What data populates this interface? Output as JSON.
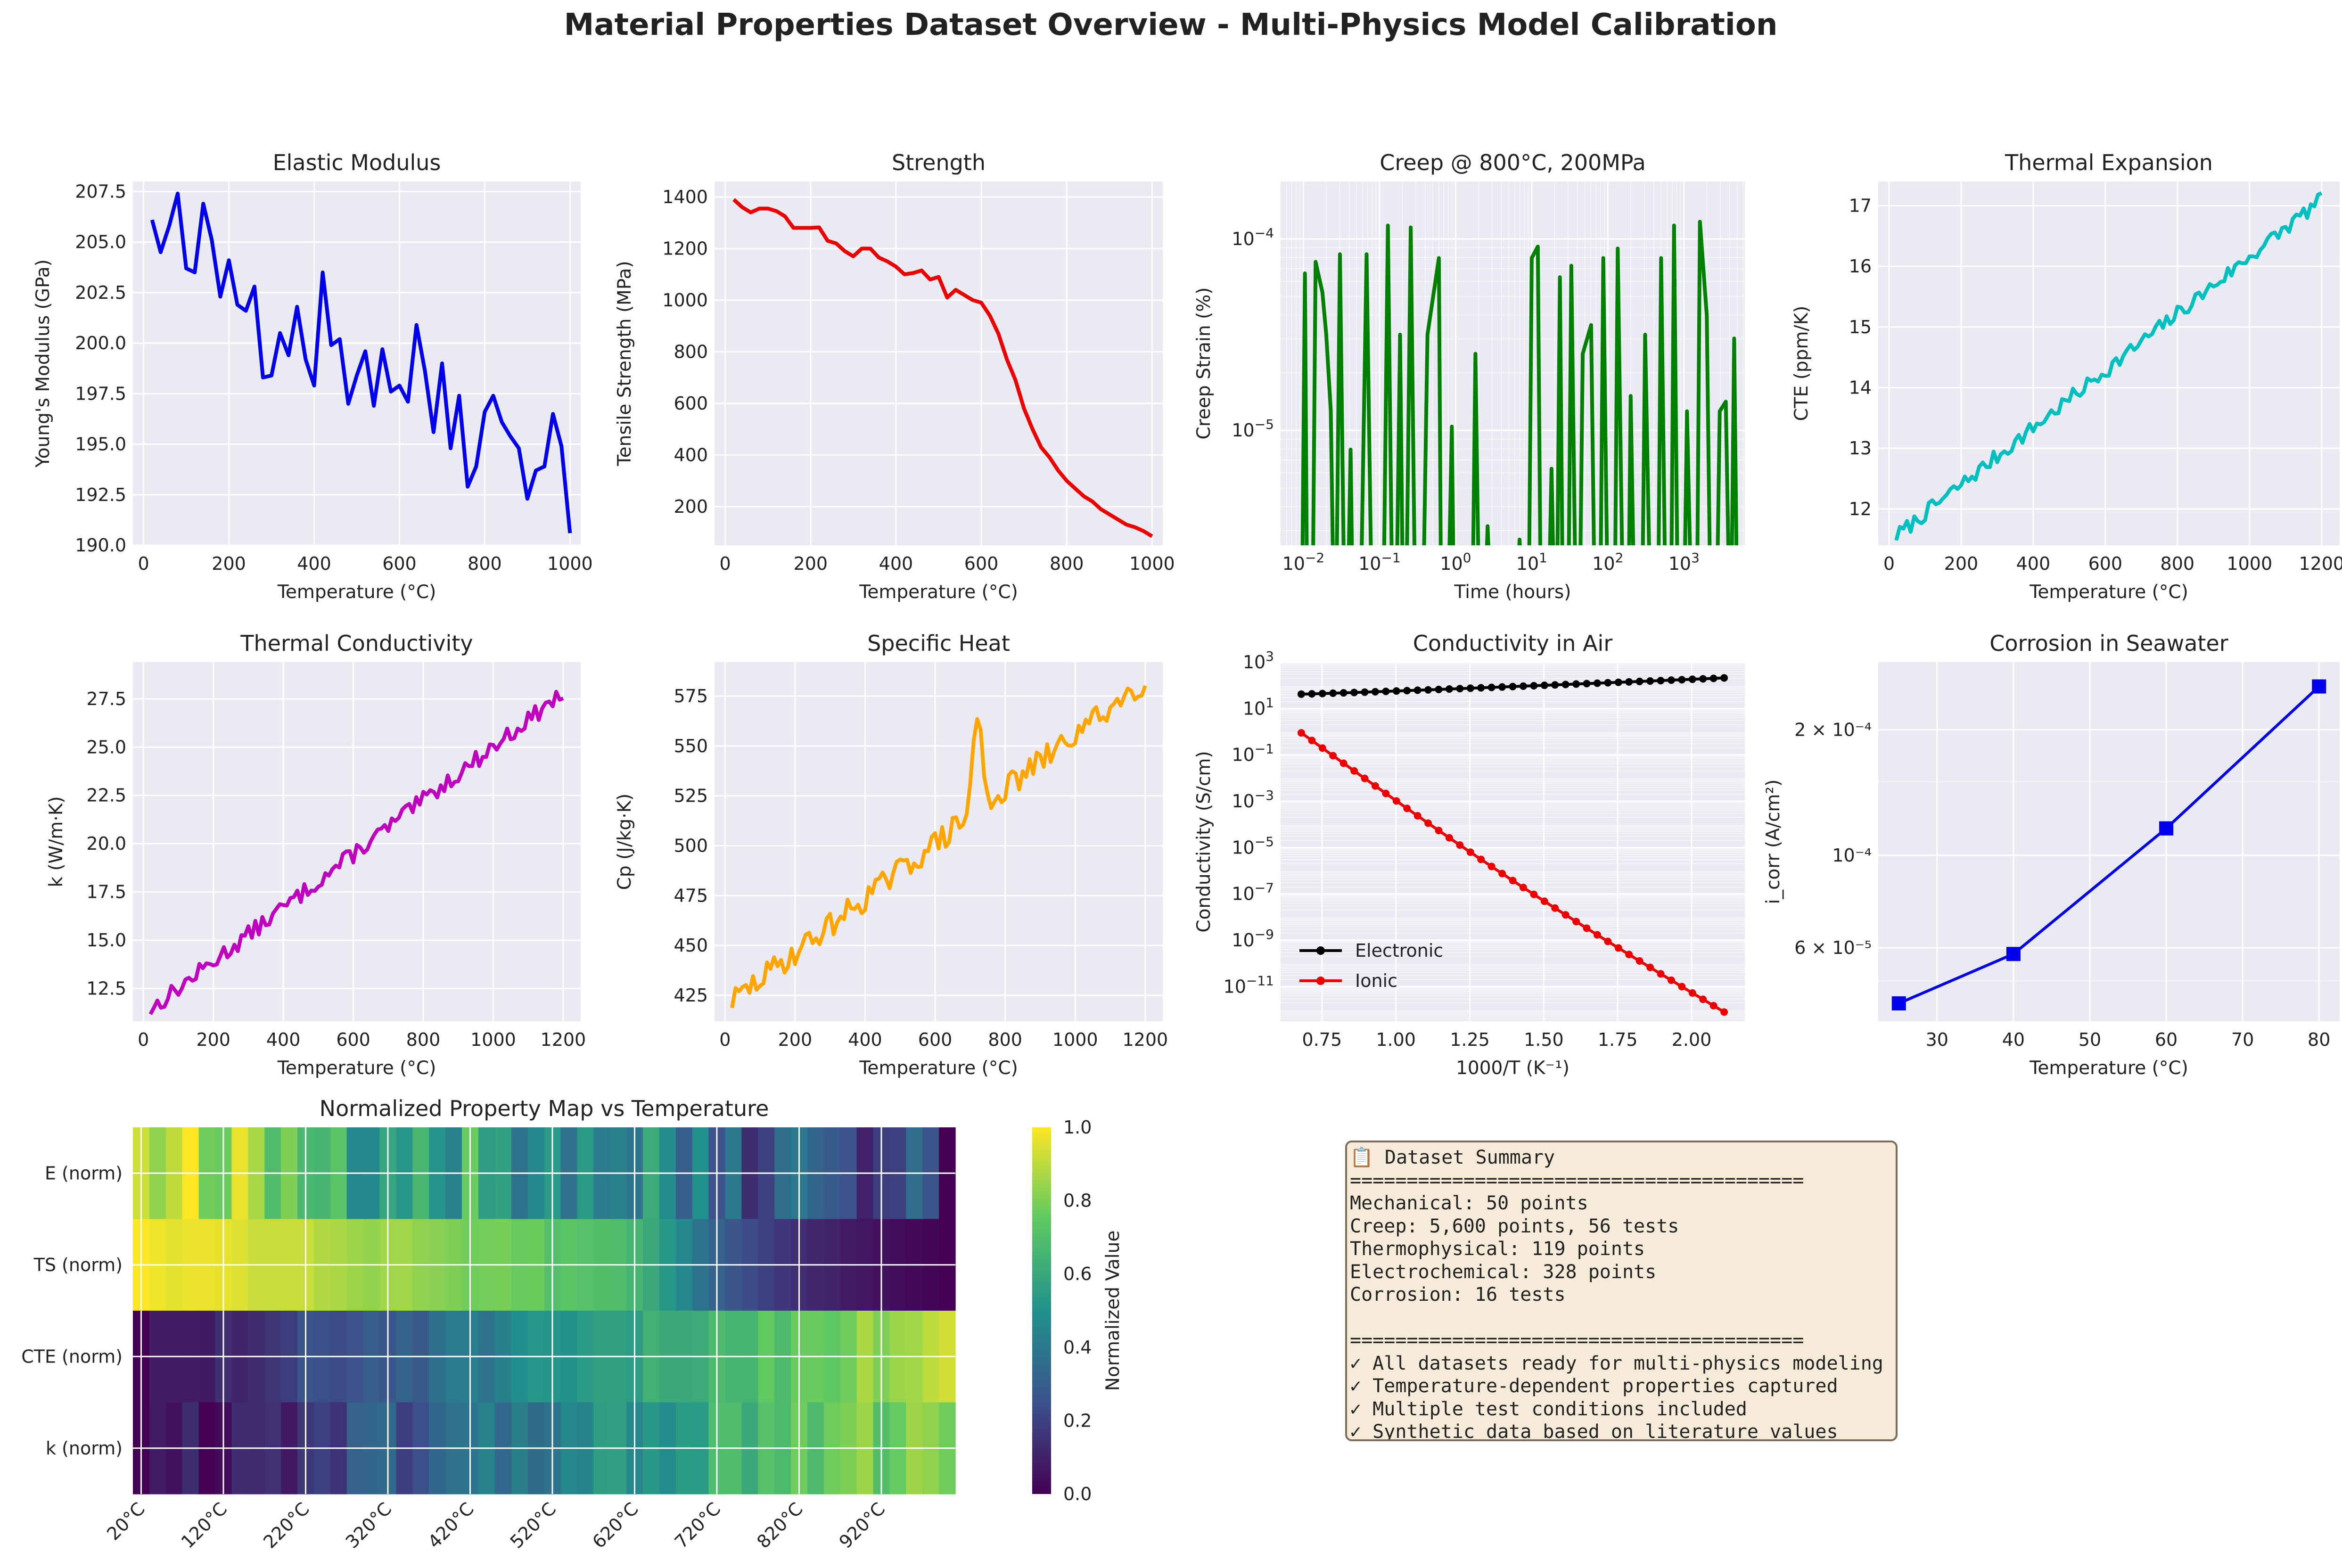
{
  "figure": {
    "title": "Material Properties Dataset Overview - Multi-Physics Model Calibration"
  },
  "chart_data": [
    {
      "id": "elastic",
      "type": "line",
      "title": "Elastic Modulus",
      "xlabel": "Temperature (°C)",
      "ylabel": "Young's Modulus (GPa)",
      "xlim": [
        -25,
        1025
      ],
      "ylim": [
        190.0,
        208.0
      ],
      "xticks": [
        0,
        200,
        400,
        600,
        800,
        1000
      ],
      "yticks": [
        190.0,
        192.5,
        195.0,
        197.5,
        200.0,
        202.5,
        205.0,
        207.5
      ],
      "ytick_decimals": 1,
      "series": [
        {
          "color": "#0000ee",
          "x": [
            20,
            40,
            60,
            80,
            100,
            120,
            140,
            160,
            180,
            200,
            220,
            240,
            260,
            280,
            300,
            320,
            340,
            360,
            380,
            400,
            420,
            440,
            460,
            480,
            500,
            520,
            540,
            560,
            580,
            600,
            620,
            640,
            660,
            680,
            700,
            720,
            740,
            760,
            780,
            800,
            820,
            840,
            860,
            880,
            900,
            920,
            940,
            960,
            980,
            1000
          ],
          "y": [
            206.1,
            204.5,
            205.8,
            207.4,
            203.7,
            203.5,
            206.9,
            205.1,
            202.3,
            204.1,
            201.9,
            201.6,
            202.8,
            198.3,
            198.4,
            200.5,
            199.4,
            201.8,
            199.2,
            197.9,
            203.5,
            199.9,
            200.2,
            197.0,
            198.4,
            199.6,
            196.9,
            199.7,
            197.6,
            197.9,
            197.1,
            200.9,
            198.6,
            195.6,
            199.0,
            194.8,
            197.4,
            192.9,
            193.9,
            196.6,
            197.4,
            196.1,
            195.4,
            194.8,
            192.3,
            193.7,
            193.9,
            196.5,
            194.9,
            190.6
          ]
        }
      ]
    },
    {
      "id": "strength",
      "type": "line",
      "title": "Strength",
      "xlabel": "Temperature (°C)",
      "ylabel": "Tensile Strength (MPa)",
      "xlim": [
        -25,
        1025
      ],
      "ylim": [
        50,
        1460
      ],
      "xticks": [
        0,
        200,
        400,
        600,
        800,
        1000
      ],
      "yticks": [
        200,
        400,
        600,
        800,
        1000,
        1200,
        1400
      ],
      "ytick_decimals": 0,
      "series": [
        {
          "color": "#ee0000",
          "x": [
            20,
            40,
            60,
            80,
            100,
            120,
            140,
            160,
            180,
            200,
            220,
            240,
            260,
            280,
            300,
            320,
            340,
            360,
            380,
            400,
            420,
            440,
            460,
            480,
            500,
            520,
            540,
            560,
            580,
            600,
            620,
            640,
            660,
            680,
            700,
            720,
            740,
            760,
            780,
            800,
            820,
            840,
            860,
            880,
            900,
            920,
            940,
            960,
            980,
            1000
          ],
          "y": [
            1390,
            1360,
            1340,
            1355,
            1355,
            1345,
            1325,
            1280,
            1280,
            1280,
            1282,
            1230,
            1220,
            1190,
            1170,
            1200,
            1200,
            1165,
            1150,
            1130,
            1100,
            1105,
            1115,
            1080,
            1090,
            1010,
            1040,
            1020,
            1000,
            990,
            940,
            870,
            770,
            690,
            580,
            500,
            430,
            390,
            340,
            300,
            270,
            240,
            220,
            190,
            170,
            150,
            130,
            120,
            105,
            85
          ]
        }
      ]
    },
    {
      "id": "creep",
      "type": "line",
      "title": "Creep @ 800°C, 200MPa",
      "xlabel": "Time (hours)",
      "ylabel": "Creep Strain (%)",
      "xscale": "log",
      "yscale": "log",
      "xlim_log10": [
        -2.3,
        3.8
      ],
      "ylim_log10": [
        -5.6,
        -3.7
      ],
      "xticks_log10": [
        -2,
        -1,
        0,
        1,
        2,
        3
      ],
      "yticks_log10": [
        -5,
        -4
      ],
      "series": [
        {
          "color": "#008000",
          "segments": [
            [
              [
                -2.02,
                -6
              ],
              [
                -1.98,
                -4.18
              ],
              [
                -1.95,
                -6
              ]
            ],
            [
              [
                -1.88,
                -6
              ],
              [
                -1.84,
                -4.12
              ],
              [
                -1.75,
                -4.28
              ],
              [
                -1.7,
                -4.5
              ],
              [
                -1.64,
                -4.9
              ],
              [
                -1.6,
                -6
              ]
            ],
            [
              [
                -1.57,
                -6
              ],
              [
                -1.52,
                -4.08
              ],
              [
                -1.46,
                -6
              ]
            ],
            [
              [
                -1.42,
                -6
              ],
              [
                -1.38,
                -5.1
              ],
              [
                -1.35,
                -6
              ]
            ],
            [
              [
                -1.25,
                -6
              ],
              [
                -1.17,
                -4.08
              ],
              [
                -1.1,
                -6
              ]
            ],
            [
              [
                -0.95,
                -6
              ],
              [
                -0.89,
                -3.93
              ],
              [
                -0.83,
                -6
              ]
            ],
            [
              [
                -0.78,
                -6
              ],
              [
                -0.73,
                -4.5
              ],
              [
                -0.69,
                -6
              ]
            ],
            [
              [
                -0.65,
                -6
              ],
              [
                -0.59,
                -3.94
              ],
              [
                -0.53,
                -6
              ]
            ],
            [
              [
                -0.43,
                -6
              ],
              [
                -0.37,
                -4.5
              ],
              [
                -0.22,
                -4.1
              ],
              [
                -0.19,
                -6
              ]
            ],
            [
              [
                -0.1,
                -6
              ],
              [
                -0.05,
                -4.98
              ],
              [
                -0.02,
                -6
              ]
            ],
            [
              [
                0.22,
                -6
              ],
              [
                0.26,
                -4.6
              ],
              [
                0.31,
                -6
              ]
            ],
            [
              [
                0.38,
                -6
              ],
              [
                0.42,
                -5.5
              ],
              [
                0.47,
                -6
              ]
            ],
            [
              [
                0.8,
                -6
              ],
              [
                0.84,
                -5.57
              ],
              [
                0.9,
                -6
              ]
            ],
            [
              [
                0.96,
                -6
              ],
              [
                1.0,
                -4.1
              ],
              [
                1.08,
                -4.04
              ],
              [
                1.12,
                -6
              ]
            ],
            [
              [
                1.22,
                -6
              ],
              [
                1.26,
                -5.2
              ],
              [
                1.3,
                -6
              ]
            ],
            [
              [
                1.33,
                -6
              ],
              [
                1.37,
                -4.2
              ],
              [
                1.41,
                -6
              ]
            ],
            [
              [
                1.48,
                -6
              ],
              [
                1.52,
                -4.14
              ],
              [
                1.58,
                -6
              ]
            ],
            [
              [
                1.63,
                -6
              ],
              [
                1.67,
                -4.6
              ],
              [
                1.78,
                -4.45
              ],
              [
                1.83,
                -6
              ]
            ],
            [
              [
                1.9,
                -6
              ],
              [
                1.94,
                -4.1
              ],
              [
                2.0,
                -6
              ]
            ],
            [
              [
                2.09,
                -6
              ],
              [
                2.13,
                -4.05
              ],
              [
                2.2,
                -6
              ]
            ],
            [
              [
                2.27,
                -6
              ],
              [
                2.3,
                -4.82
              ],
              [
                2.35,
                -6
              ]
            ],
            [
              [
                2.45,
                -6
              ],
              [
                2.49,
                -4.5
              ],
              [
                2.56,
                -6
              ]
            ],
            [
              [
                2.66,
                -6
              ],
              [
                2.7,
                -4.1
              ],
              [
                2.76,
                -6
              ]
            ],
            [
              [
                2.83,
                -6
              ],
              [
                2.87,
                -3.93
              ],
              [
                2.92,
                -6
              ]
            ],
            [
              [
                3.0,
                -6
              ],
              [
                3.04,
                -4.9
              ],
              [
                3.1,
                -6
              ]
            ],
            [
              [
                3.17,
                -6
              ],
              [
                3.21,
                -3.91
              ],
              [
                3.3,
                -4.4
              ],
              [
                3.35,
                -6
              ]
            ],
            [
              [
                3.43,
                -6
              ],
              [
                3.47,
                -4.9
              ],
              [
                3.55,
                -4.85
              ],
              [
                3.6,
                -6
              ]
            ],
            [
              [
                3.62,
                -6
              ],
              [
                3.66,
                -4.52
              ],
              [
                3.7,
                -6
              ]
            ]
          ]
        }
      ]
    },
    {
      "id": "cte",
      "type": "line",
      "title": "Thermal Expansion",
      "xlabel": "Temperature (°C)",
      "ylabel": "CTE (ppm/K)",
      "xlim": [
        -30,
        1250
      ],
      "ylim": [
        11.4,
        17.4
      ],
      "xticks": [
        0,
        200,
        400,
        600,
        800,
        1000,
        1200
      ],
      "yticks": [
        12,
        13,
        14,
        15,
        16,
        17
      ],
      "ytick_decimals": 0,
      "series": [
        {
          "color": "#00bfbf",
          "gen": "trend",
          "from": 20,
          "to": 1200,
          "n": 119,
          "start": 11.55,
          "end": 17.1,
          "amp": 0.13,
          "seed": 7
        }
      ]
    },
    {
      "id": "kcond",
      "type": "line",
      "title": "Thermal Conductivity",
      "xlabel": "Temperature (°C)",
      "ylabel": "k (W/m·K)",
      "xlim": [
        -30,
        1250
      ],
      "ylim": [
        10.8,
        29.4
      ],
      "xticks": [
        0,
        200,
        400,
        600,
        800,
        1000,
        1200
      ],
      "yticks": [
        12.5,
        15.0,
        17.5,
        20.0,
        22.5,
        25.0,
        27.5
      ],
      "ytick_decimals": 1,
      "series": [
        {
          "color": "#bf00bf",
          "gen": "trend",
          "from": 20,
          "to": 1200,
          "n": 119,
          "start": 11.4,
          "end": 27.8,
          "amp": 0.45,
          "seed": 13
        }
      ]
    },
    {
      "id": "cp",
      "type": "line",
      "title": "Specific Heat",
      "xlabel": "Temperature (°C)",
      "ylabel": "Cp (J/kg·K)",
      "xlim": [
        -30,
        1250
      ],
      "ylim": [
        412,
        592
      ],
      "xticks": [
        0,
        200,
        400,
        600,
        800,
        1000,
        1200
      ],
      "yticks": [
        425,
        450,
        475,
        500,
        525,
        550,
        575
      ],
      "ytick_decimals": 0,
      "series": [
        {
          "color": "#ffa500",
          "gen": "trend",
          "from": 20,
          "to": 1200,
          "n": 119,
          "start": 422,
          "end": 583,
          "amp": 6.5,
          "seed": 29,
          "peak": {
            "at": 720,
            "height": 48,
            "width": 18
          }
        }
      ]
    },
    {
      "id": "elec",
      "type": "line",
      "title": "Conductivity in Air",
      "xlabel": "1000/T (K⁻¹)",
      "ylabel": "Conductivity (S/cm)",
      "yscale": "log",
      "xlim": [
        0.61,
        2.18
      ],
      "ylim_log10": [
        -12.5,
        3.0
      ],
      "xticks": [
        0.75,
        1.0,
        1.25,
        1.5,
        1.75,
        2.0
      ],
      "xtick_decimals": 2,
      "yticks_log10": [
        -11,
        -9,
        -7,
        -5,
        -3,
        -1,
        1,
        3
      ],
      "legend": {
        "position": "lower left",
        "entries": [
          "Electronic",
          "Ionic"
        ]
      },
      "series": [
        {
          "name": "Electronic",
          "color": "#000000",
          "marker": "circle",
          "gen": "loglinear",
          "x_from": 0.68,
          "x_to": 2.11,
          "n": 41,
          "y_at_from": 1.62,
          "y_at_to": 2.32,
          "convex": true
        },
        {
          "name": "Ionic",
          "color": "#ee0000",
          "marker": "circle",
          "gen": "loglinear",
          "x_from": 0.68,
          "x_to": 2.11,
          "n": 41,
          "y_at_from": -0.05,
          "y_at_to": -12.1,
          "curve": 0.35
        }
      ]
    },
    {
      "id": "corrosion",
      "type": "line",
      "title": "Corrosion in Seawater",
      "xlabel": "Temperature (°C)",
      "ylabel": "i_corr (A/cm²)",
      "yscale": "log",
      "xlim": [
        22.3,
        82.7
      ],
      "ylim_log10": [
        -4.398,
        -3.537
      ],
      "xticks": [
        30,
        40,
        50,
        60,
        70,
        80
      ],
      "xtick_decimals": 0,
      "ytick_labels": [
        {
          "label": "6 × 10⁻⁵",
          "log10": -4.2218
        },
        {
          "label": "10⁻⁴",
          "log10": -4.0
        },
        {
          "label": "2 × 10⁻⁴",
          "log10": -3.699
        }
      ],
      "series": [
        {
          "color": "#0000ee",
          "marker": "square",
          "x": [
            25,
            40,
            60,
            80
          ],
          "y_log10": [
            -4.355,
            -4.2366,
            -3.9355,
            -3.5952
          ]
        }
      ]
    },
    {
      "id": "heatmap",
      "type": "heatmap",
      "title": "Normalized Property Map vs Temperature",
      "row_labels": [
        "E (norm)",
        "TS (norm)",
        "CTE (norm)",
        "k (norm)"
      ],
      "col_tick_labels": [
        "20°C",
        "120°C",
        "220°C",
        "320°C",
        "420°C",
        "520°C",
        "620°C",
        "720°C",
        "820°C",
        "920°C"
      ],
      "n_cols": 50,
      "colorbar": {
        "label": "Normalized Value",
        "ticks": [
          0.0,
          0.2,
          0.4,
          0.6,
          0.8,
          1.0
        ]
      },
      "rows": [
        {
          "source": "elastic",
          "invert": false
        },
        {
          "source": "strength",
          "invert": false
        },
        {
          "gen": "ramp",
          "start": 0.02,
          "end": 0.92,
          "amp": 0.06,
          "seed": 51
        },
        {
          "gen": "ramp",
          "start": 0.0,
          "end": 0.85,
          "amp": 0.1,
          "seed": 61
        }
      ]
    }
  ],
  "summary": {
    "lines": [
      "📋 Dataset Summary",
      "========================================",
      "Mechanical: 50 points",
      "Creep: 5,600 points, 56 tests",
      "Thermophysical: 119 points",
      "Electrochemical: 328 points",
      "Corrosion: 16 tests",
      "",
      "========================================",
      "✓ All datasets ready for multi-physics modeling",
      "✓ Temperature-dependent properties captured",
      "✓ Multiple test conditions included",
      "✓ Synthetic data based on literature values"
    ]
  }
}
